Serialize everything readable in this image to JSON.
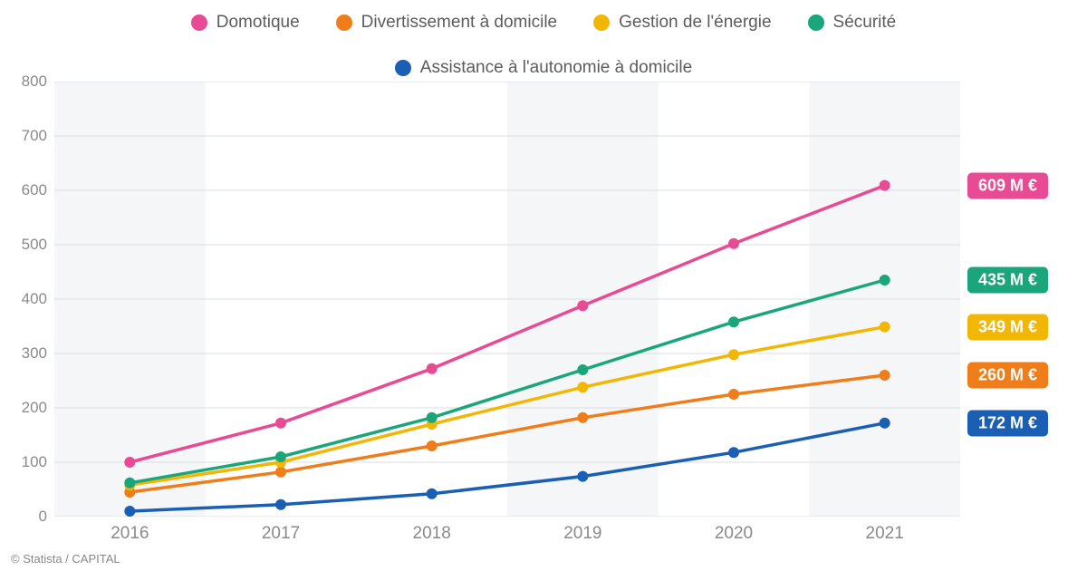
{
  "chart": {
    "type": "line",
    "background_color": "#ffffff",
    "grid_color": "#d9dde1",
    "axis_label_color": "#8a8a8a",
    "band_color": "#f4f6f8",
    "label_fontsize": 19,
    "tick_fontsize": 17,
    "x_categories": [
      "2016",
      "2017",
      "2018",
      "2019",
      "2020",
      "2021"
    ],
    "ylim": [
      0,
      800
    ],
    "ytick_step": 100,
    "yticks": [
      0,
      100,
      200,
      300,
      400,
      500,
      600,
      700,
      800
    ],
    "line_width": 3.5,
    "marker_radius": 6,
    "series": [
      {
        "id": "domotique",
        "label": "Domotique",
        "color": "#e94a94",
        "values": [
          100,
          172,
          272,
          388,
          502,
          609
        ],
        "end_label": "609 M €"
      },
      {
        "id": "divertissement",
        "label": "Divertissement à domicile",
        "color": "#ef7d1a",
        "values": [
          45,
          82,
          130,
          182,
          225,
          260
        ],
        "end_label": "260 M €"
      },
      {
        "id": "energie",
        "label": "Gestion de l'énergie",
        "color": "#f2b705",
        "values": [
          58,
          100,
          170,
          238,
          298,
          349
        ],
        "end_label": "349 M €"
      },
      {
        "id": "securite",
        "label": "Sécurité",
        "color": "#1aa67a",
        "values": [
          62,
          110,
          182,
          270,
          358,
          435
        ],
        "end_label": "435 M €"
      },
      {
        "id": "assistance",
        "label": "Assistance à l'autonomie à domicile",
        "color": "#1a5fb4",
        "values": [
          10,
          22,
          42,
          74,
          118,
          172
        ],
        "end_label": "172 M €"
      }
    ],
    "legend_order": [
      "domotique",
      "divertissement",
      "energie",
      "securite",
      "assistance"
    ]
  },
  "credit": "© Statista / CAPITAL"
}
